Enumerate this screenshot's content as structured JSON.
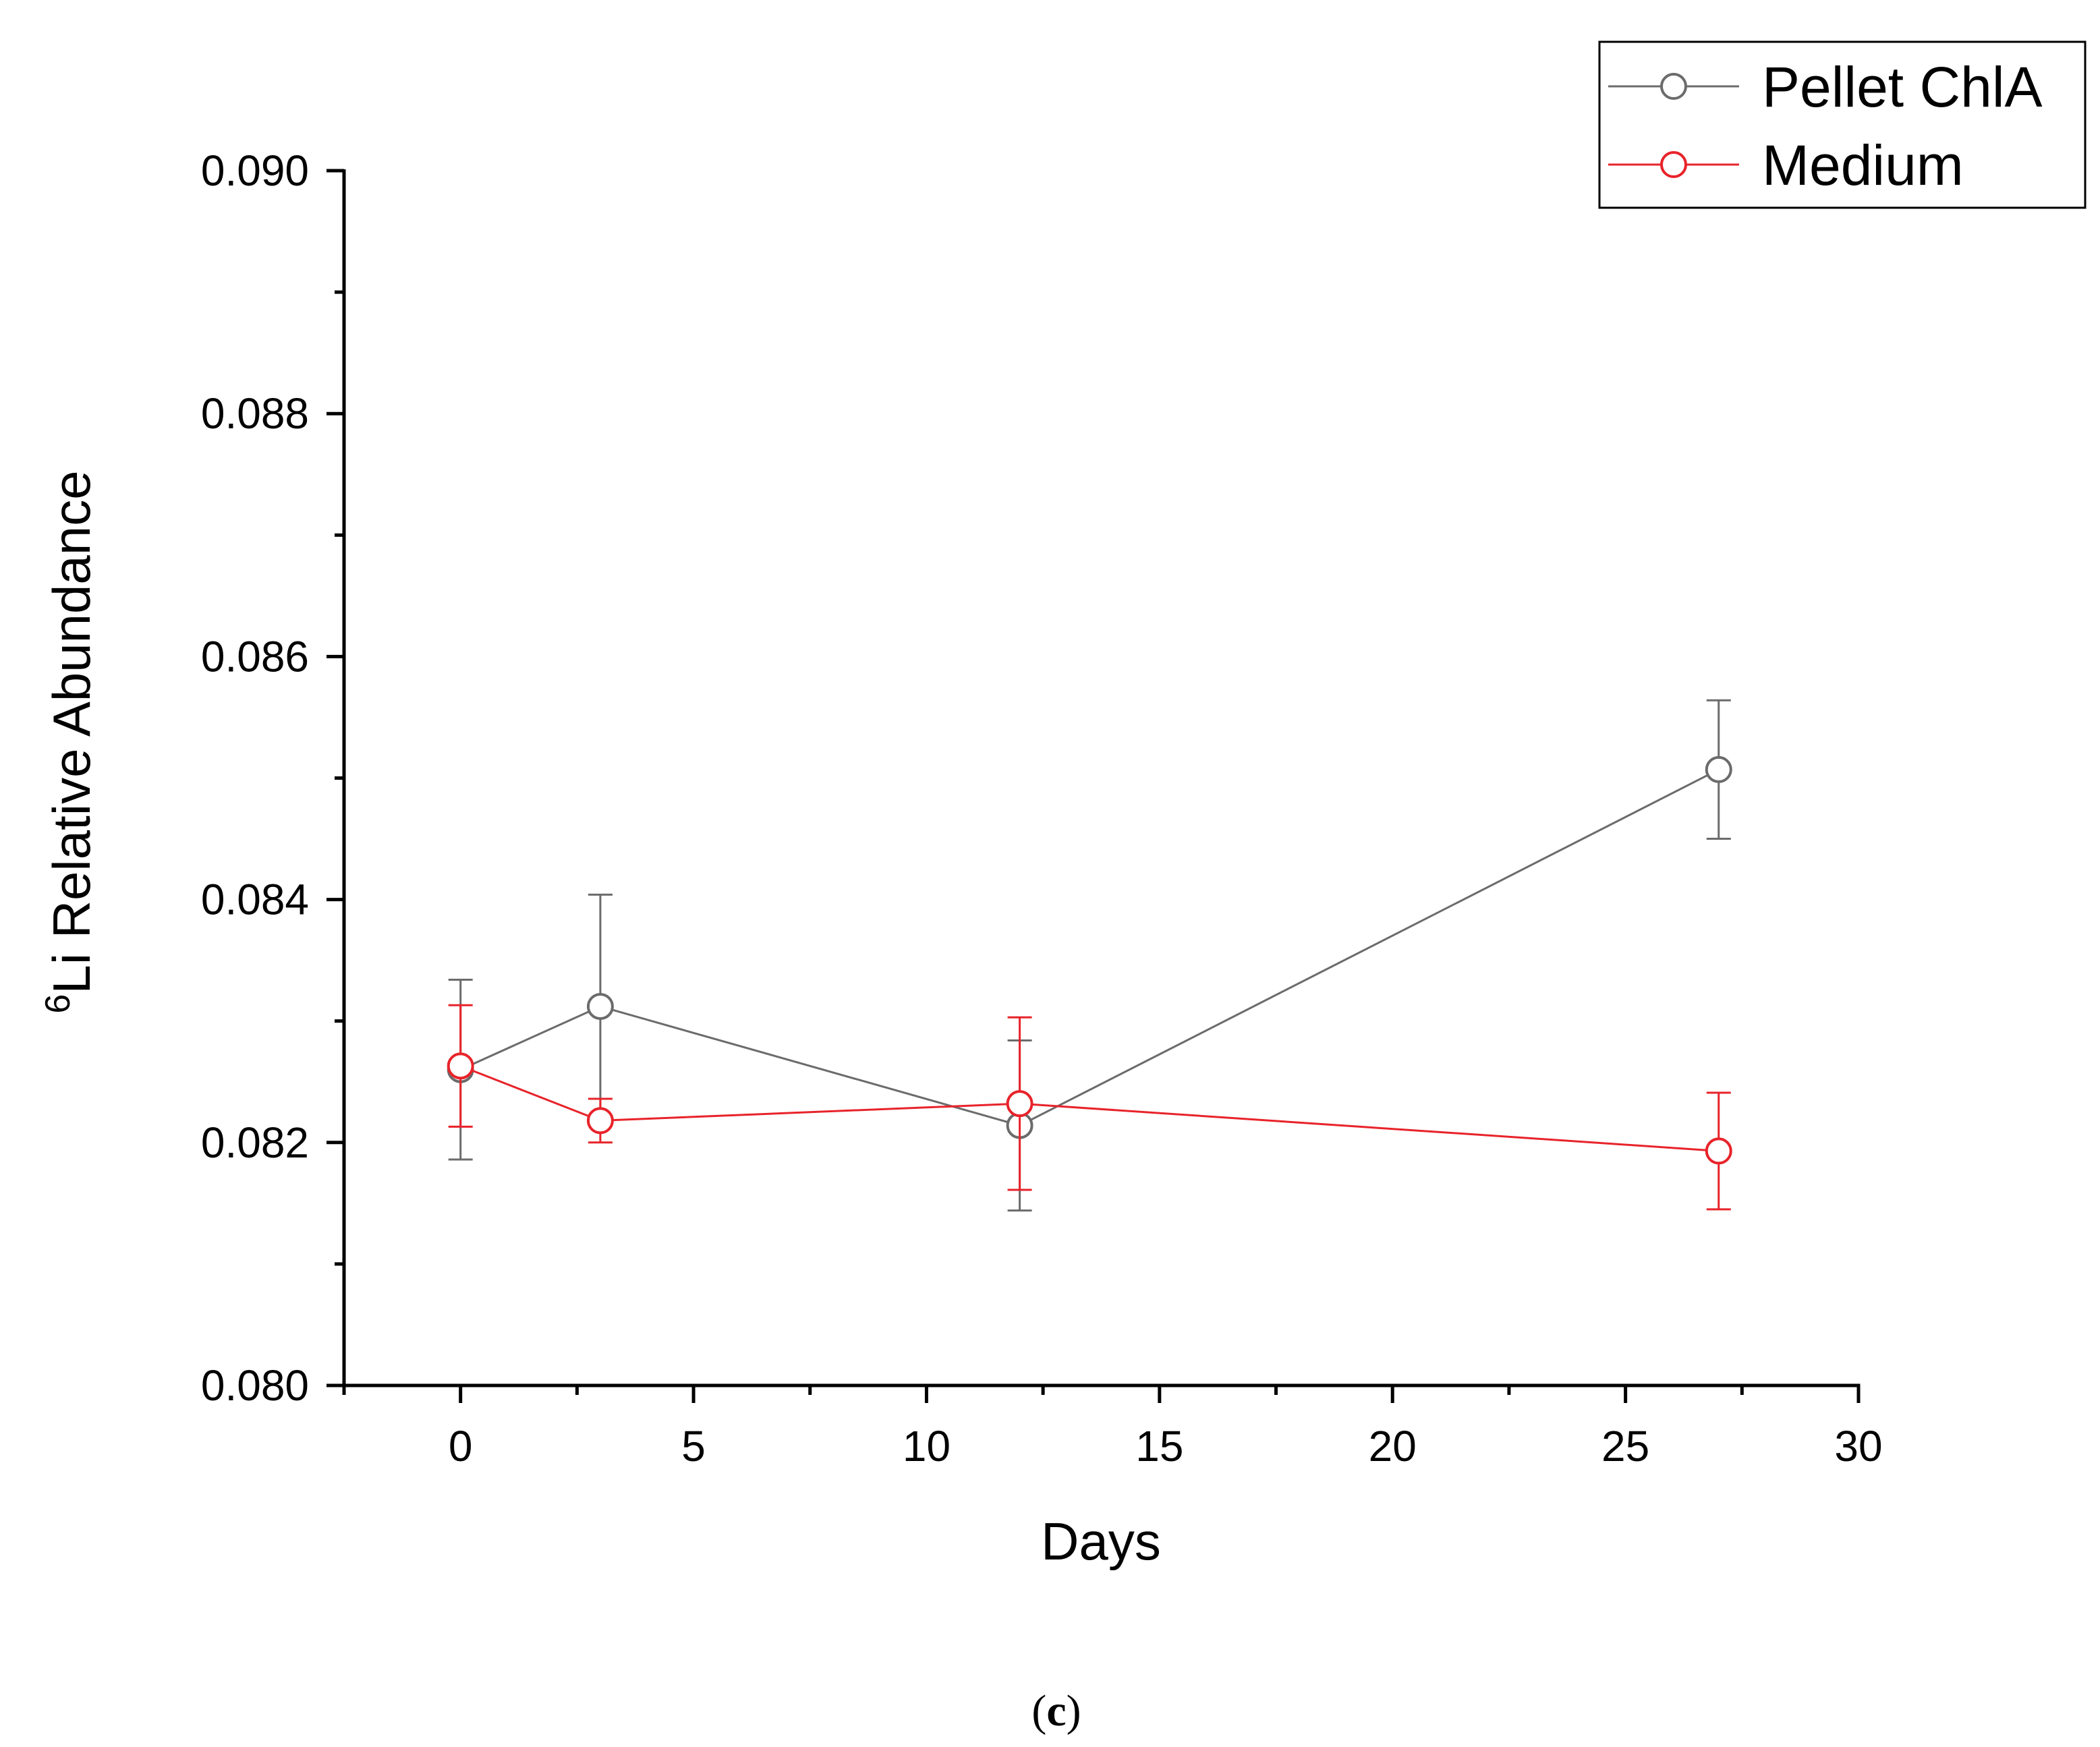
{
  "chart_data": {
    "type": "line",
    "title": "",
    "xlabel": "Days",
    "ylabel": {
      "superscript": "6",
      "text": "Li Relative Abundance"
    },
    "xlim": [
      -2.5,
      30
    ],
    "ylim": [
      0.08,
      0.09
    ],
    "x_ticks": [
      0,
      5,
      10,
      15,
      20,
      25,
      30
    ],
    "x_tick_labels": [
      "0",
      "5",
      "10",
      "15",
      "20",
      "25",
      "30"
    ],
    "y_ticks": [
      0.08,
      0.082,
      0.084,
      0.086,
      0.088,
      0.09
    ],
    "y_tick_labels": [
      "0.080",
      "0.082",
      "0.084",
      "0.086",
      "0.088",
      "0.090"
    ],
    "x_minor_ticks": [
      -2.5,
      2.5,
      7.5,
      12.5,
      17.5,
      22.5,
      27.5
    ],
    "y_minor_ticks": [
      0.081,
      0.083,
      0.085,
      0.087,
      0.089
    ],
    "grid": false,
    "legend_position": "top-right",
    "series": [
      {
        "name": "Pellet ChlA",
        "color": "#6b6b6b",
        "marker": "open-circle",
        "x": [
          0,
          3,
          12,
          27
        ],
        "y": [
          0.0826,
          0.08312,
          0.08214,
          0.08507
        ],
        "err": [
          0.00074,
          0.00092,
          0.0007,
          0.00057
        ]
      },
      {
        "name": "Medium",
        "color": "#e8232a",
        "marker": "open-circle",
        "x": [
          0,
          3,
          12,
          27
        ],
        "y": [
          0.08263,
          0.08218,
          0.08232,
          0.08193
        ],
        "err": [
          0.0005,
          0.00018,
          0.00071,
          0.00048
        ]
      }
    ]
  },
  "caption": {
    "open": "(",
    "letter": "c",
    "close": ")"
  }
}
